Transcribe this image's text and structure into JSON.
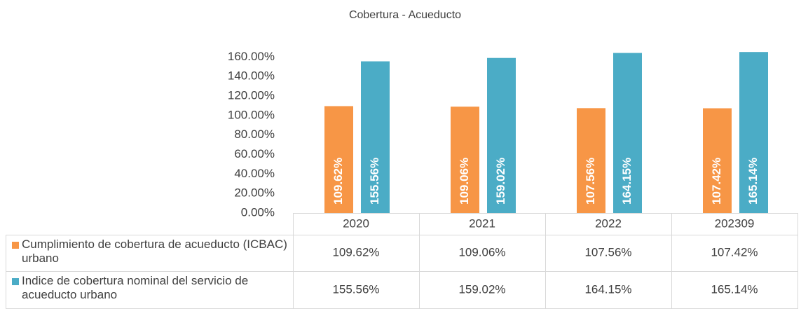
{
  "chart_data": {
    "type": "bar",
    "title": "Cobertura - Acueducto",
    "categories": [
      "2020",
      "2021",
      "2022",
      "202309"
    ],
    "series": [
      {
        "name": "Cumplimiento de cobertura de acueducto (ICBAC) urbano",
        "color": "#f79646",
        "values": [
          109.62,
          109.06,
          107.56,
          107.42
        ],
        "value_labels": [
          "109.62%",
          "109.06%",
          "107.56%",
          "107.42%"
        ]
      },
      {
        "name": "Indice de cobertura nominal del servicio de acueducto urbano",
        "color": "#4bacc6",
        "values": [
          155.56,
          159.02,
          164.15,
          165.14
        ],
        "value_labels": [
          "155.56%",
          "159.02%",
          "164.15%",
          "165.14%"
        ]
      }
    ],
    "ylim": [
      0,
      166
    ],
    "yticks": [
      {
        "value": 0,
        "label": "0.00%"
      },
      {
        "value": 20,
        "label": "20.00%"
      },
      {
        "value": 40,
        "label": "40.00%"
      },
      {
        "value": 60,
        "label": "60.00%"
      },
      {
        "value": 80,
        "label": "80.00%"
      },
      {
        "value": 100,
        "label": "100.00%"
      },
      {
        "value": 120,
        "label": "120.00%"
      },
      {
        "value": 140,
        "label": "140.00%"
      },
      {
        "value": 160,
        "label": "160.00%"
      }
    ]
  }
}
